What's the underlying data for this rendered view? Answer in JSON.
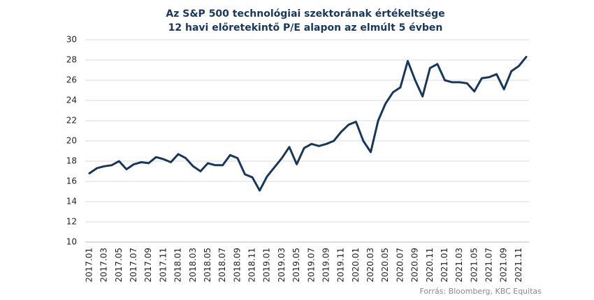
{
  "chart_data": {
    "type": "line",
    "title": "Az S&P 500 technológiai szektorának értékeltsége",
    "subtitle": "12 havi előretekintő P/E alapon az elmúlt 5 évben",
    "source": "Forrás: Bloomberg,  KBC Equitas",
    "categories": [
      "2017.01",
      null,
      "2017.03",
      null,
      "2017.05",
      null,
      "2017.07",
      null,
      "2017.09",
      null,
      "2017.11",
      null,
      "2018.01",
      null,
      "2018.03",
      null,
      "2018.05",
      null,
      "2018.07",
      null,
      "2018.09",
      null,
      "2018.11",
      null,
      "2019.01",
      null,
      "2019.03",
      null,
      "2019.05",
      null,
      "2019.07",
      null,
      "2019.09",
      null,
      "2019.11",
      null,
      "2020.01",
      null,
      "2020.03",
      null,
      "2020.05",
      null,
      "2020.07",
      null,
      "2020.09",
      null,
      "2020.11",
      null,
      "2021.01",
      null,
      "2021.03",
      null,
      "2021.05",
      null,
      "2021.07",
      null,
      "2021.09",
      null,
      "2021.11",
      null
    ],
    "series": [
      {
        "name": "P/E",
        "color": "#17375e",
        "values": [
          16.8,
          17.3,
          17.5,
          17.6,
          18.0,
          17.2,
          17.7,
          17.9,
          17.8,
          18.4,
          18.2,
          17.9,
          18.7,
          18.3,
          17.5,
          17.0,
          17.8,
          17.6,
          17.6,
          18.6,
          18.3,
          16.7,
          16.4,
          15.1,
          16.5,
          17.4,
          18.3,
          19.4,
          17.7,
          19.3,
          19.7,
          19.5,
          19.7,
          20.0,
          20.9,
          21.6,
          21.9,
          20.0,
          18.9,
          22.0,
          23.7,
          24.8,
          25.3,
          27.9,
          26.0,
          24.4,
          27.2,
          27.6,
          26.0,
          25.8,
          25.8,
          25.7,
          24.9,
          26.2,
          26.3,
          26.6,
          25.1,
          26.9,
          27.4,
          28.3
        ]
      }
    ],
    "ylim": [
      10,
      30
    ],
    "yticks": [
      10,
      12,
      14,
      16,
      18,
      20,
      22,
      24,
      26,
      28,
      30
    ],
    "grid": true
  }
}
